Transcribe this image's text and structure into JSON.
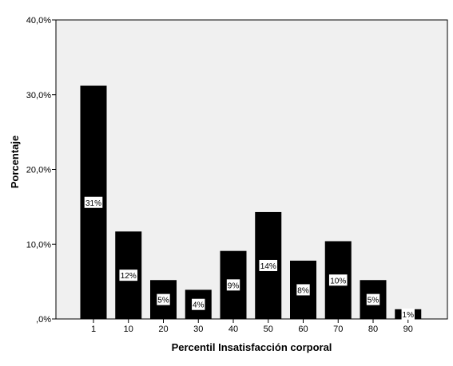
{
  "chart_data": {
    "type": "bar",
    "categories": [
      "1",
      "10",
      "20",
      "30",
      "40",
      "50",
      "60",
      "70",
      "80",
      "90"
    ],
    "values": [
      31.2,
      11.7,
      5.2,
      3.9,
      9.1,
      14.3,
      7.8,
      10.4,
      5.2,
      1.3
    ],
    "data_labels": [
      "31%",
      "12%",
      "5%",
      "4%",
      "9%",
      "14%",
      "8%",
      "10%",
      "5%",
      "1%"
    ],
    "xlabel": "Percentil Insatisfacción corporal",
    "ylabel": "Porcentaje",
    "ylim": [
      0,
      40
    ],
    "yticks": [
      0,
      10,
      20,
      30,
      40
    ],
    "ytick_labels": [
      ",0%",
      "10,0%",
      "20,0%",
      "30,0%",
      "40,0%"
    ],
    "grid": false,
    "colors": {
      "bar": "#000000",
      "plot_background": "#f0f0f0",
      "label_box": "#ffffff"
    }
  }
}
